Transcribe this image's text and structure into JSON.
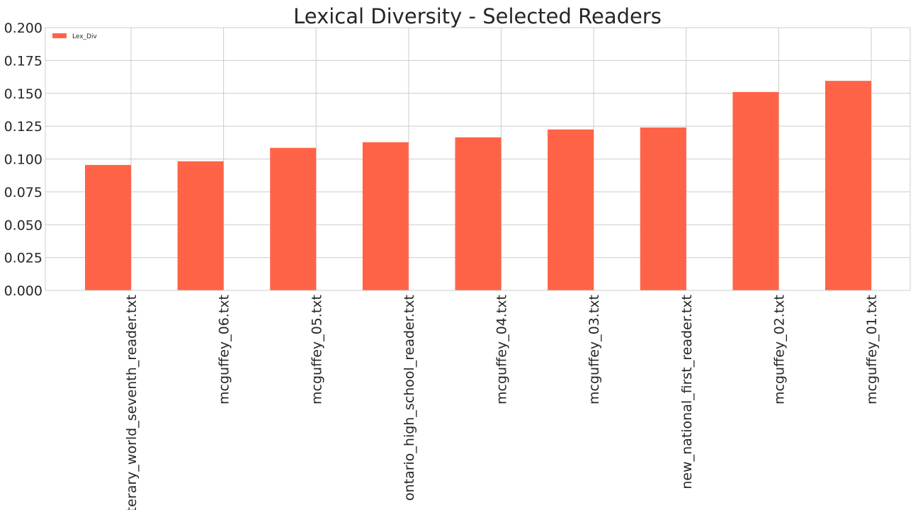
{
  "chart_data": {
    "type": "bar",
    "title": "Lexical Diversity - Selected Readers",
    "xlabel": "",
    "ylabel": "",
    "categories": [
      "literary_world_seventh_reader.txt",
      "mcguffey_06.txt",
      "mcguffey_05.txt",
      "ontario_high_school_reader.txt",
      "mcguffey_04.txt",
      "mcguffey_03.txt",
      "new_national_first_reader.txt",
      "mcguffey_02.txt",
      "mcguffey_01.txt"
    ],
    "series": [
      {
        "name": "Lex_Div",
        "color": "#ff6347",
        "values": [
          0.0955,
          0.0983,
          0.1085,
          0.1128,
          0.1165,
          0.1225,
          0.124,
          0.151,
          0.1595
        ]
      }
    ],
    "ylim": [
      0,
      0.2
    ],
    "yticks": [
      "0.000",
      "0.025",
      "0.050",
      "0.075",
      "0.100",
      "0.125",
      "0.150",
      "0.175",
      "0.200"
    ],
    "grid": true,
    "legend_position": "top-left"
  }
}
